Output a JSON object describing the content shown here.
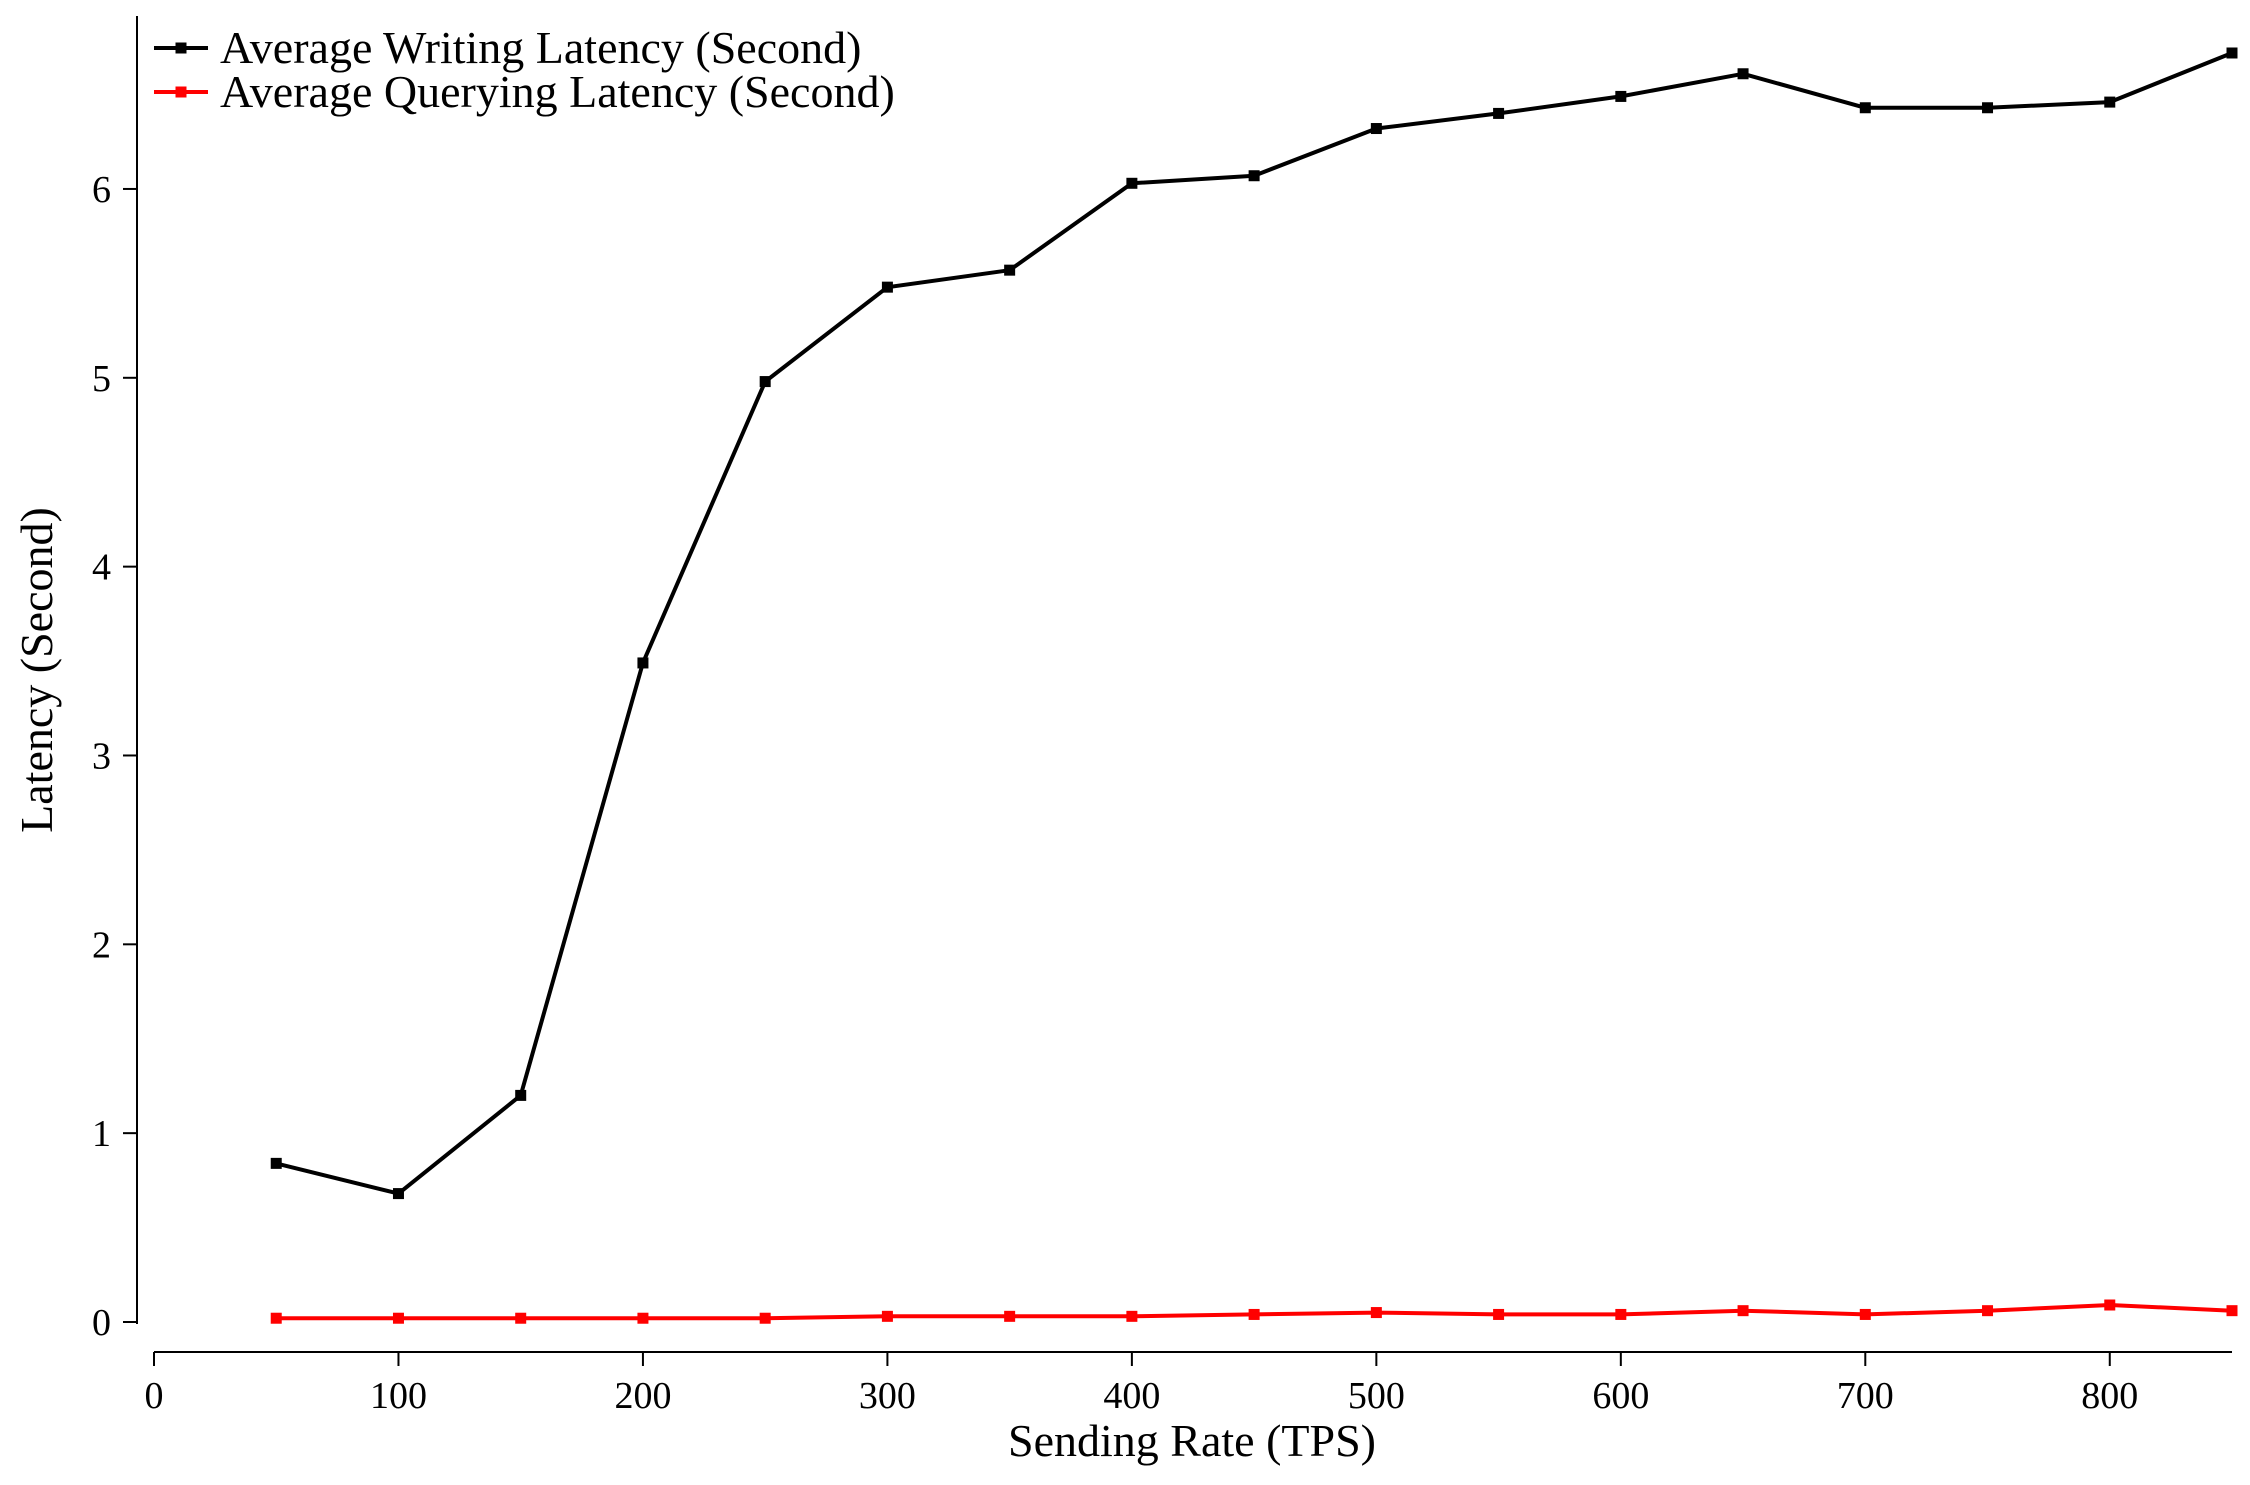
{
  "chart_data": {
    "type": "line",
    "title": "",
    "xlabel": "Sending Rate (TPS)",
    "ylabel": "Latency (Second)",
    "xlim": [
      0,
      850
    ],
    "ylim": [
      0,
      6.9
    ],
    "x_ticks": [
      0,
      100,
      200,
      300,
      400,
      500,
      600,
      700,
      800
    ],
    "y_ticks": [
      0,
      1,
      2,
      3,
      4,
      5,
      6
    ],
    "grid": false,
    "legend_position": "top-left",
    "x": [
      50,
      100,
      150,
      200,
      250,
      300,
      350,
      400,
      450,
      500,
      550,
      600,
      650,
      700,
      750,
      800,
      850
    ],
    "series": [
      {
        "name": "Average Writing Latency (Second)",
        "color": "#000000",
        "marker": "square",
        "values": [
          0.84,
          0.68,
          1.2,
          3.49,
          4.98,
          5.48,
          5.57,
          6.03,
          6.07,
          6.32,
          6.4,
          6.49,
          6.61,
          6.43,
          6.43,
          6.46,
          6.72
        ]
      },
      {
        "name": "Average Querying Latency (Second)",
        "color": "#ff0000",
        "marker": "square",
        "values": [
          0.02,
          0.02,
          0.02,
          0.02,
          0.02,
          0.03,
          0.03,
          0.03,
          0.04,
          0.05,
          0.04,
          0.04,
          0.06,
          0.04,
          0.06,
          0.09,
          0.06
        ]
      }
    ]
  }
}
